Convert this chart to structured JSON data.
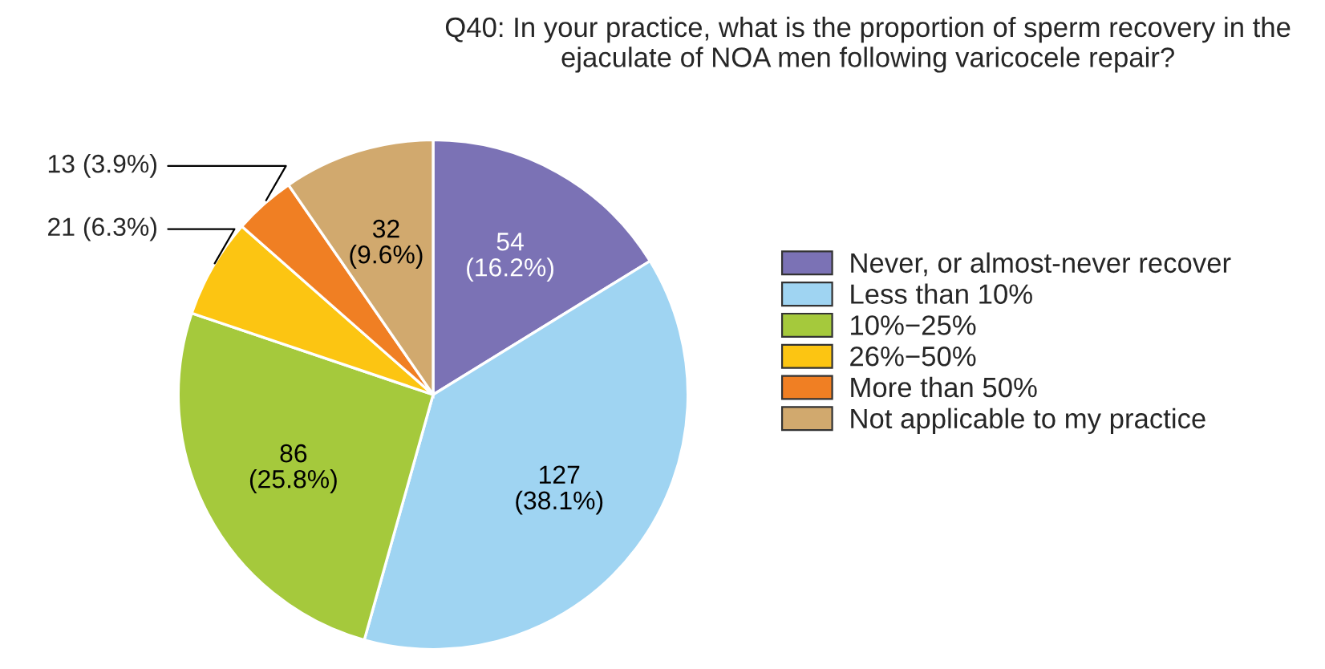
{
  "chart_data": {
    "type": "pie",
    "title": "Q40: In your practice, what is the proportion of sperm recovery in the\nejaculate of NOA men following varicocele repair?",
    "categories": [
      "Never, or almost-never recover",
      "Less than 10%",
      "10%−25%",
      "26%−50%",
      "More than 50%",
      "Not applicable to my practice"
    ],
    "values": [
      54,
      127,
      86,
      21,
      13,
      32
    ],
    "colors": [
      "#7b72b5",
      "#9fd4f2",
      "#a5c93c",
      "#fcc512",
      "#f07f23",
      "#d1a96e"
    ],
    "value_labels": [
      "54\n(16.2%)",
      "127\n(38.1%)",
      "86\n(25.8%)",
      "21 (6.3%)",
      "13 (3.9%)",
      "32\n(9.6%)"
    ],
    "legend": "right"
  }
}
